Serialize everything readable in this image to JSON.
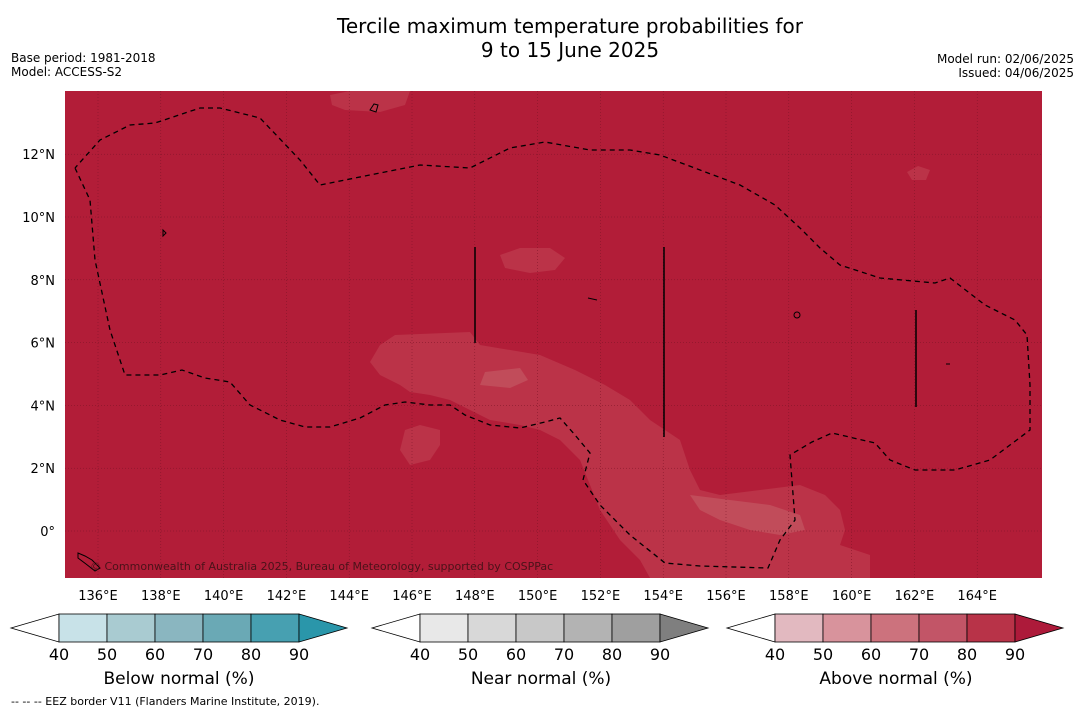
{
  "header": {
    "title_line1": "Tercile maximum temperature probabilities for",
    "title_line2": "9 to 15 June 2025",
    "base_period": "Base period: 1981-2018",
    "model": "Model: ACCESS-S2",
    "model_run": "Model run: 02/06/2025",
    "issued": "Issued: 04/06/2025"
  },
  "map": {
    "lon_ticks": [
      "136°E",
      "138°E",
      "140°E",
      "142°E",
      "144°E",
      "146°E",
      "148°E",
      "150°E",
      "152°E",
      "154°E",
      "156°E",
      "158°E",
      "160°E",
      "162°E",
      "164°E"
    ],
    "lat_ticks": [
      "12°N",
      "10°N",
      "8°N",
      "6°N",
      "4°N",
      "2°N",
      "0°"
    ],
    "lon_values": [
      136,
      138,
      140,
      142,
      144,
      146,
      148,
      150,
      152,
      154,
      156,
      158,
      160,
      162,
      164
    ],
    "lat_values": [
      12,
      10,
      8,
      6,
      4,
      2,
      0
    ],
    "copyright": "© Commonwealth of Australia 2025, Bureau of Meteorology, supported by COSPPac",
    "background_color": "#b21d38",
    "lighter_patch_color": "#bb3348"
  },
  "colorbars": [
    {
      "name": "below",
      "label": "Below normal (%)",
      "ticks": [
        "40",
        "50",
        "60",
        "70",
        "80",
        "90"
      ],
      "colors": [
        "#ffffff",
        "#c8e2e8",
        "#a9cbd1",
        "#8ab6c0",
        "#6aa9b5",
        "#47a0b1",
        "#2a96aa"
      ]
    },
    {
      "name": "near",
      "label": "Near normal (%)",
      "ticks": [
        "40",
        "50",
        "60",
        "70",
        "80",
        "90"
      ],
      "colors": [
        "#ffffff",
        "#e8e8e8",
        "#d8d8d8",
        "#c8c8c8",
        "#b3b3b3",
        "#9f9f9f",
        "#7f7f7f"
      ]
    },
    {
      "name": "above",
      "label": "Above normal (%)",
      "ticks": [
        "40",
        "50",
        "60",
        "70",
        "80",
        "90"
      ],
      "colors": [
        "#ffffff",
        "#e2b9c0",
        "#d8939c",
        "#cc727d",
        "#c25567",
        "#b83348",
        "#ad1a3a"
      ]
    }
  ],
  "footer": "-- -- -- EEZ border V11 (Flanders Marine Institute, 2019)."
}
